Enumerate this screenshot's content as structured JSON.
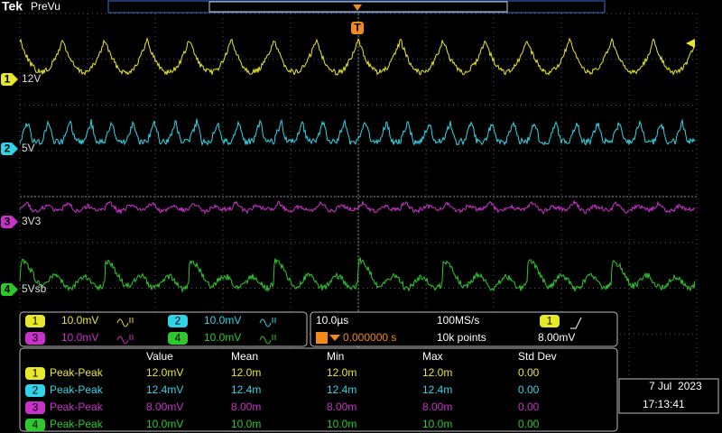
{
  "header": {
    "brand": "Tek",
    "mode": "PreVu",
    "trigger_marker": "T"
  },
  "channels": [
    {
      "number": "1",
      "label": "12V",
      "color": "#e8e82a",
      "scale": "10.0mV"
    },
    {
      "number": "2",
      "label": "5V",
      "color": "#30d4e8",
      "scale": "10.0mV"
    },
    {
      "number": "3",
      "label": "3V3",
      "color": "#c832c8",
      "scale": "10.0mV"
    },
    {
      "number": "4",
      "label": "5Vsb",
      "color": "#2ec82e",
      "scale": "10.0mV"
    }
  ],
  "timebase": {
    "horizontal_scale": "10.0µs",
    "sample_rate": "100MS/s",
    "trigger_delay": "0.000000 s",
    "record_length": "10k points",
    "trigger_source": "1",
    "trigger_level": "8.00mV"
  },
  "measurements": {
    "headers": [
      "Value",
      "Mean",
      "Min",
      "Max",
      "Std Dev"
    ],
    "rows": [
      {
        "channel": "1",
        "name": "Peak-Peak",
        "cells": [
          "12.0mV",
          "12.0m",
          "12.0m",
          "12.0m",
          "0.00"
        ]
      },
      {
        "channel": "2",
        "name": "Peak-Peak",
        "cells": [
          "12.4mV",
          "12.4m",
          "12.4m",
          "12.4m",
          "0.00"
        ]
      },
      {
        "channel": "3",
        "name": "Peak-Peak",
        "cells": [
          "8.00mV",
          "8.00m",
          "8.00m",
          "8.00m",
          "0.00"
        ]
      },
      {
        "channel": "4",
        "name": "Peak-Peak",
        "cells": [
          "10.0mV",
          "10.0m",
          "10.0m",
          "10.0m",
          "0.00"
        ]
      }
    ]
  },
  "datetime": {
    "date": "7 Jul  2023",
    "time": "17:13:41"
  }
}
